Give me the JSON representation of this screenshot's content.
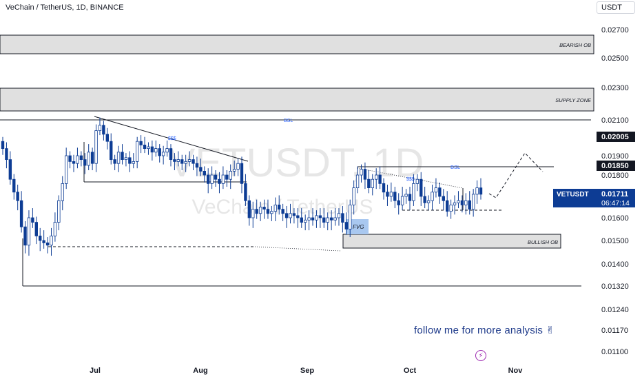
{
  "header": {
    "title": "VeChain / TetherUS, 1D, BINANCE",
    "currency": "USDT"
  },
  "watermark": {
    "symbol": "VETUSDT, 1D",
    "name": "VeChain / TetherUS"
  },
  "price_axis": {
    "ticks": [
      "0.02700",
      "0.02500",
      "0.02300",
      "0.02100",
      "0.01900",
      "0.01800",
      "0.01600",
      "0.01500",
      "0.01400",
      "0.01320",
      "0.01240",
      "0.01170",
      "0.01100"
    ],
    "tags": [
      {
        "text": "0.02005"
      },
      {
        "text": "0.01850"
      }
    ],
    "current": {
      "symbol": "VETUSDT",
      "price": "0.01711",
      "countdown": "06:47:14",
      "color": "#0d3c94"
    }
  },
  "time_axis": {
    "labels": [
      "Jul",
      "Aug",
      "Sep",
      "Oct",
      "Nov"
    ]
  },
  "zones": [
    {
      "label": "BEARISH OB",
      "color": "#e0e0e0"
    },
    {
      "label": "SUPPLY ZONE",
      "color": "#e0e0e0"
    },
    {
      "label": "BULLISH OB",
      "color": "#e0e0e0"
    },
    {
      "label": "FVG",
      "color": "#a9c8f0"
    }
  ],
  "annotations": {
    "bsl_top": "BSL",
    "bsl_right": "BSL",
    "sss_left": "$$$",
    "sss_right": "$$$"
  },
  "footer": {
    "follow_text": "follow me for more analysis ✌"
  },
  "colors": {
    "candle_up": "#ffffff",
    "candle_down": "#0d3c94",
    "accent": "#0d3c94"
  },
  "chart_data": {
    "type": "candlestick",
    "symbol": "VETUSDT",
    "timeframe": "1D",
    "ylim": [
      0.0105,
      0.028
    ],
    "candles_close_approx": [
      0.0194,
      0.0188,
      0.0178,
      0.0172,
      0.0168,
      0.0156,
      0.0148,
      0.016,
      0.0158,
      0.0152,
      0.015,
      0.0149,
      0.0148,
      0.0152,
      0.0158,
      0.0168,
      0.0176,
      0.019,
      0.0187,
      0.0186,
      0.019,
      0.0188,
      0.0185,
      0.0192,
      0.0186,
      0.0204,
      0.0207,
      0.0202,
      0.0198,
      0.0188,
      0.0186,
      0.0192,
      0.0188,
      0.0189,
      0.0186,
      0.0187,
      0.0198,
      0.0196,
      0.0194,
      0.0195,
      0.0192,
      0.0194,
      0.019,
      0.0192,
      0.0194,
      0.0188,
      0.0187,
      0.0188,
      0.0186,
      0.0187,
      0.0188,
      0.0186,
      0.0184,
      0.0182,
      0.018,
      0.0176,
      0.018,
      0.0178,
      0.0176,
      0.018,
      0.0178,
      0.0182,
      0.0183,
      0.0186,
      0.0176,
      0.0168,
      0.016,
      0.0164,
      0.0162,
      0.0165,
      0.0164,
      0.0162,
      0.0163,
      0.0166,
      0.0164,
      0.0162,
      0.016,
      0.0162,
      0.0161,
      0.016,
      0.0158,
      0.0159,
      0.016,
      0.0159,
      0.0161,
      0.016,
      0.0158,
      0.016,
      0.0159,
      0.016,
      0.0162,
      0.0158,
      0.0155,
      0.0166,
      0.0174,
      0.018,
      0.0183,
      0.0178,
      0.0174,
      0.0178,
      0.018,
      0.0176,
      0.0172,
      0.017,
      0.0172,
      0.0168,
      0.0166,
      0.017,
      0.0171,
      0.0168,
      0.0176,
      0.0178,
      0.017,
      0.0167,
      0.0168,
      0.0172,
      0.0174,
      0.017,
      0.0168,
      0.0163,
      0.0166,
      0.0167,
      0.0168,
      0.0166,
      0.0168,
      0.0164,
      0.0171,
      0.0174,
      0.0171
    ],
    "last_price": 0.01711,
    "levels": [
      0.02005,
      0.0185
    ]
  }
}
